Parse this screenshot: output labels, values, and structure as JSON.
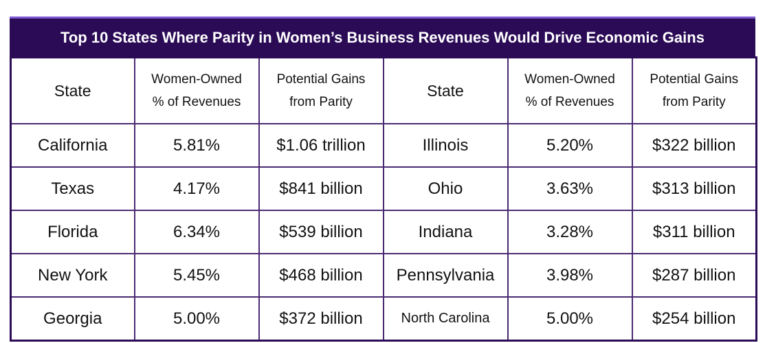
{
  "title": "Top 10 States Where Parity in Women’s Business Revenues Would Drive Economic Gains",
  "headers": {
    "state": "State",
    "pct_line1": "Women-Owned",
    "pct_line2": "% of Revenues",
    "gain_line1": "Potential Gains",
    "gain_line2": "from Parity"
  },
  "rows": [
    {
      "l_state": "California",
      "l_pct": "5.81%",
      "l_gain": "$1.06 trillion",
      "r_state": "Illinois",
      "r_pct": "5.20%",
      "r_gain": "$322 billion"
    },
    {
      "l_state": "Texas",
      "l_pct": "4.17%",
      "l_gain": "$841 billion",
      "r_state": "Ohio",
      "r_pct": "3.63%",
      "r_gain": "$313 billion"
    },
    {
      "l_state": "Florida",
      "l_pct": "6.34%",
      "l_gain": "$539 billion",
      "r_state": "Indiana",
      "r_pct": "3.28%",
      "r_gain": "$311 billion"
    },
    {
      "l_state": "New York",
      "l_pct": "5.45%",
      "l_gain": "$468 billion",
      "r_state": "Pennsylvania",
      "r_pct": "3.98%",
      "r_gain": "$287 billion"
    },
    {
      "l_state": "Georgia",
      "l_pct": "5.00%",
      "l_gain": "$372 billion",
      "r_state": "North Carolina",
      "r_pct": "5.00%",
      "r_gain": "$254 billion"
    }
  ],
  "colors": {
    "header_bg": "#2b0b56",
    "accent": "#7e5bd2",
    "border": "#4a2a72"
  }
}
